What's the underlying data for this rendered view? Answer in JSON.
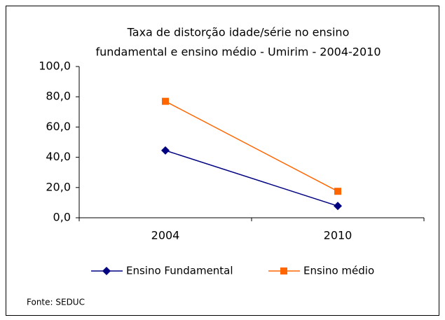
{
  "chart_data": {
    "type": "line",
    "title": [
      "Taxa de distorção idade/série no ensino",
      "fundamental e ensino médio - Umirim -  2004-2010"
    ],
    "categories": [
      "2004",
      "2010"
    ],
    "series": [
      {
        "name": "Ensino Fundamental",
        "color": "#000080",
        "marker": "diamond",
        "values": [
          44.5,
          7.8
        ]
      },
      {
        "name": "Ensino médio",
        "color": "#ff6600",
        "marker": "square",
        "values": [
          77.0,
          17.5
        ]
      }
    ],
    "ylim": [
      0,
      100
    ],
    "yticks": [
      {
        "value": 0,
        "label": "0,0"
      },
      {
        "value": 20,
        "label": "20,0"
      },
      {
        "value": 40,
        "label": "40,0"
      },
      {
        "value": 60,
        "label": "60,0"
      },
      {
        "value": 80,
        "label": "80,0"
      },
      {
        "value": 100,
        "label": "100,0"
      }
    ],
    "grid": false,
    "legend": "bottom",
    "source": "Fonte: SEDUC"
  }
}
